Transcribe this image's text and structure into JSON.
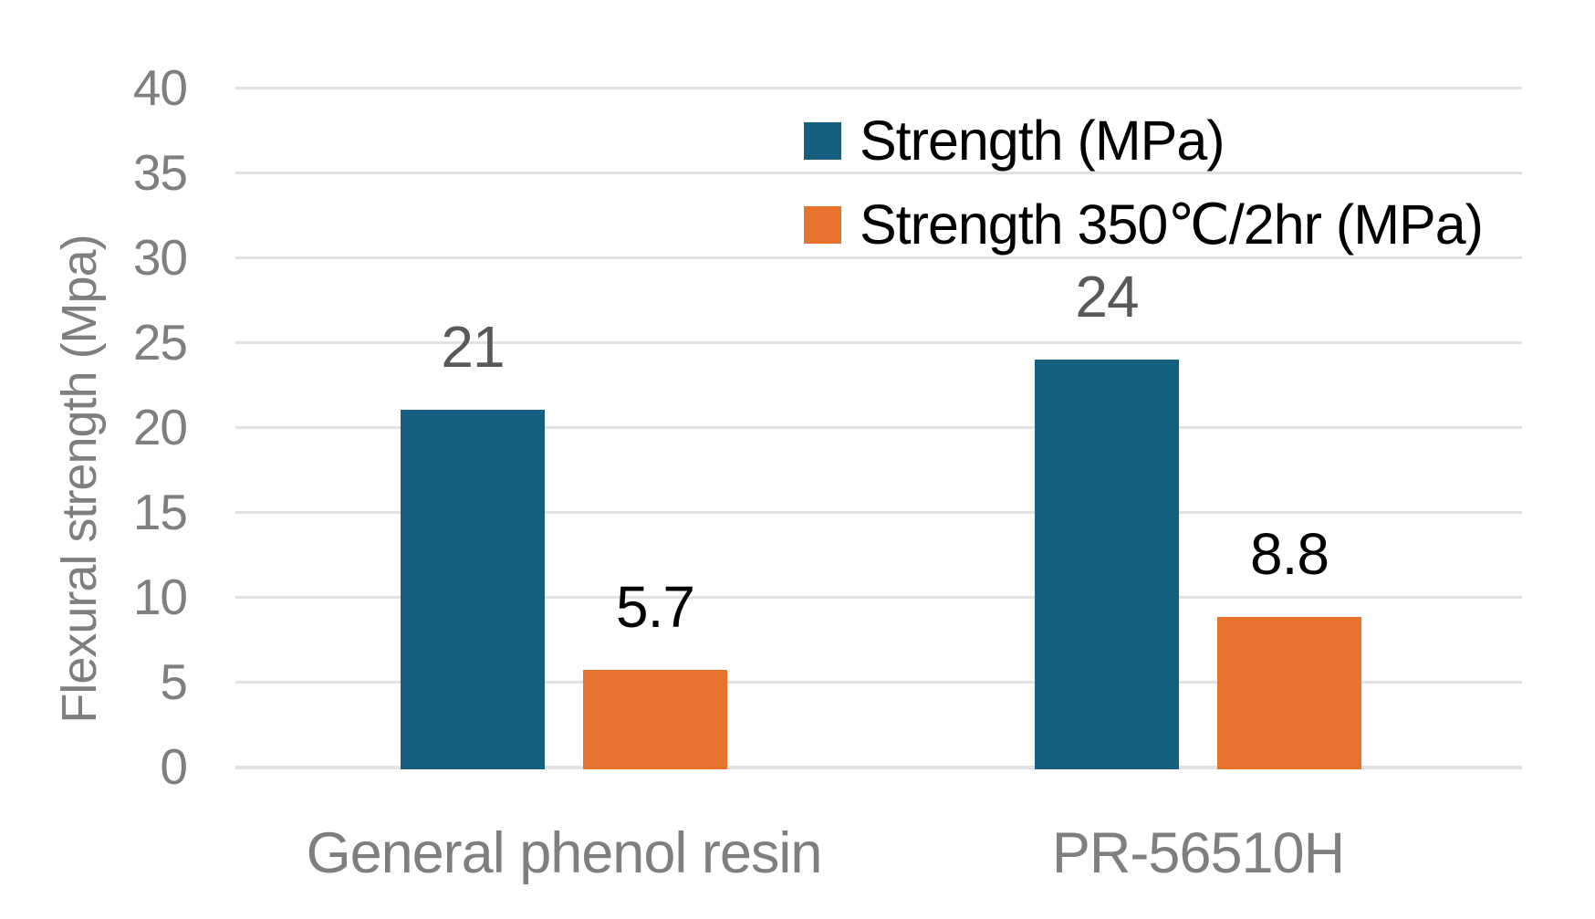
{
  "chart_data": {
    "type": "bar",
    "title": "",
    "categories": [
      "General phenol resin",
      "PR-56510H"
    ],
    "series": [
      {
        "name": "Strength (MPa)",
        "values": [
          21,
          24
        ],
        "data_labels": [
          "21",
          "24"
        ],
        "color": "#16607f",
        "label_color": "#595959"
      },
      {
        "name": "Strength 350℃/2hr (MPa)",
        "values": [
          5.7,
          8.8
        ],
        "data_labels": [
          "5.7",
          "8.8"
        ],
        "color": "#e8732f",
        "label_color": "#000000"
      }
    ],
    "xlabel": "",
    "ylabel": "Flexural strength (Mpa)",
    "ylim": [
      0,
      40
    ],
    "yticks": [
      0,
      5,
      10,
      15,
      20,
      25,
      30,
      35,
      40
    ],
    "grid": true,
    "legend_position": "top-right",
    "colors": {
      "axis_text": "#7f7f7f",
      "gridline": "#e2e2e2",
      "legend_text": "#000000",
      "background": "#ffffff"
    }
  }
}
